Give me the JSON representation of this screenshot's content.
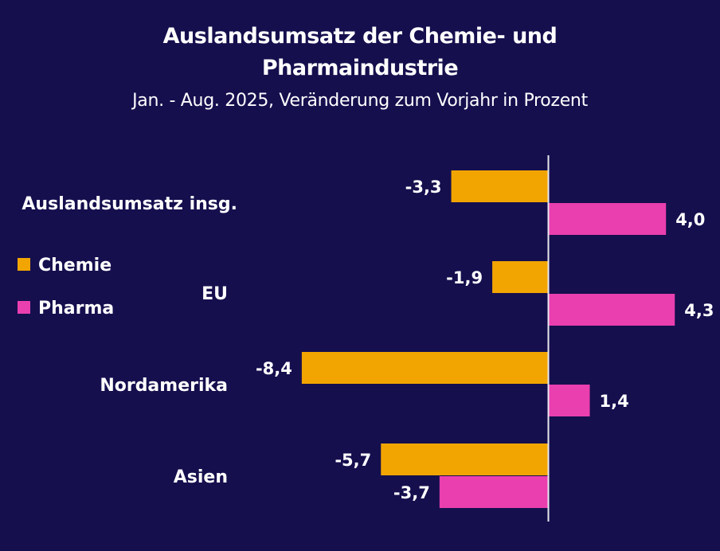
{
  "chart_data": {
    "type": "bar",
    "orientation": "horizontal",
    "title": "Auslandsumsatz der Chemie- und Pharmaindustrie",
    "title_lines": [
      "Auslandsumsatz der Chemie- und",
      "Pharmaindustrie"
    ],
    "subtitle": "Jan. - Aug. 2025, Veränderung zum Vorjahr in Prozent",
    "categories": [
      "Auslandsumsatz insg.",
      "EU",
      "Nordamerika",
      "Asien"
    ],
    "series": [
      {
        "name": "Chemie",
        "color": "#f2a500",
        "values": [
          -3.3,
          -1.9,
          -8.4,
          -5.7
        ],
        "labels": [
          "-3,3",
          "-1,9",
          "-8,4",
          "-5,7"
        ]
      },
      {
        "name": "Pharma",
        "color": "#ea3fae",
        "values": [
          4.0,
          4.3,
          1.4,
          -3.7
        ],
        "labels": [
          "4,0",
          "4,3",
          "1,4",
          "-3,7"
        ]
      }
    ],
    "xlim": [
      -8.4,
      4.3
    ],
    "grid": false,
    "legend_placement": "left"
  }
}
